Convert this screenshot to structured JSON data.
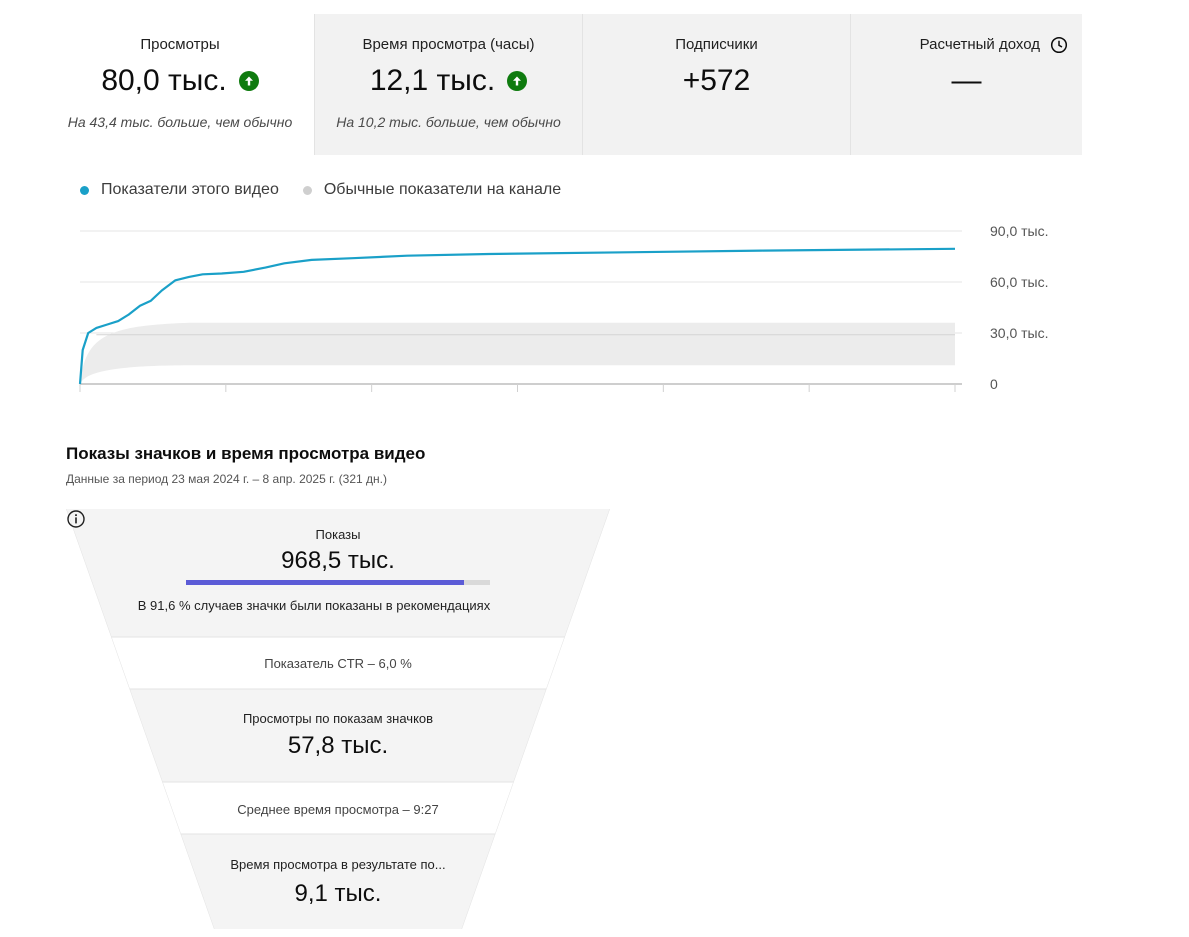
{
  "metrics": [
    {
      "label": "Просмотры",
      "value": "80,0 тыс.",
      "trend_icon": "arrow-up-circle-icon",
      "note": "На 43,4 тыс. больше, чем обычно"
    },
    {
      "label": "Время просмотра (часы)",
      "value": "12,1 тыс.",
      "trend_icon": "arrow-up-circle-icon",
      "note": "На 10,2 тыс. больше, чем обычно"
    },
    {
      "label": "Подписчики",
      "value": "+572"
    },
    {
      "label": "Расчетный доход",
      "value": "—",
      "icon": "clock-icon"
    }
  ],
  "legend": {
    "this_video": "Показатели этого видео",
    "typical": "Обычные показатели на канале"
  },
  "colors": {
    "series": "#1aa0c8",
    "band": "#ececec",
    "trend_up": "#0f7b0f",
    "progress": "#5b5bd6"
  },
  "chart_data": {
    "type": "line",
    "y_ticks": [
      "90,0 тыс.",
      "60,0 тыс.",
      "30,0 тыс.",
      "0"
    ],
    "ylim": [
      0,
      90000
    ],
    "series": [
      {
        "name": "Показатели этого видео",
        "points": [
          [
            0,
            0
          ],
          [
            1,
            20000
          ],
          [
            3,
            30000
          ],
          [
            6,
            33000
          ],
          [
            10,
            35000
          ],
          [
            14,
            37000
          ],
          [
            18,
            41000
          ],
          [
            22,
            46000
          ],
          [
            26,
            49000
          ],
          [
            30,
            55000
          ],
          [
            35,
            61000
          ],
          [
            40,
            63000
          ],
          [
            45,
            64500
          ],
          [
            52,
            65000
          ],
          [
            60,
            66000
          ],
          [
            68,
            68500
          ],
          [
            75,
            71000
          ],
          [
            85,
            73000
          ],
          [
            100,
            74000
          ],
          [
            120,
            75500
          ],
          [
            150,
            76500
          ],
          [
            200,
            77500
          ],
          [
            250,
            78500
          ],
          [
            321,
            79500
          ]
        ]
      }
    ],
    "typical_band": {
      "upper": 36000,
      "lower": 11000,
      "median": 29000
    }
  },
  "funnel": {
    "title": "Показы значков и время просмотра видео",
    "subtitle": "Данные за период 23 мая 2024 г. – 8 апр. 2025 г. (321 дн.)",
    "impressions_label": "Показы",
    "impressions_value": "968,5 тыс.",
    "recommendations_share": 0.916,
    "recommendations_note": "В 91,6 % случаев значки были показаны в рекомендациях",
    "ctr": "Показатель CTR – 6,0 %",
    "views_label": "Просмотры по показам значков",
    "views_value": "57,8 тыс.",
    "avg_view": "Среднее время просмотра – 9:27",
    "watch_label": "Время просмотра в результате по...",
    "watch_value": "9,1 тыс."
  }
}
